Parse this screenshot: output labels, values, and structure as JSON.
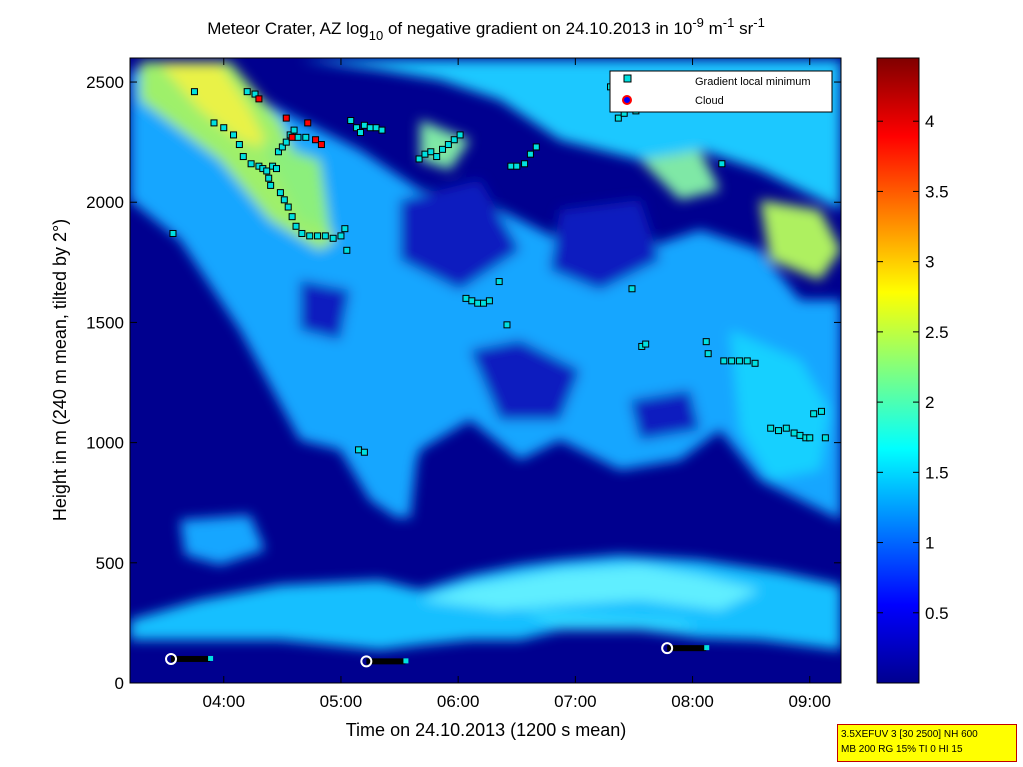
{
  "chart_data": {
    "type": "heatmap",
    "title": {
      "part1": "Meteor Crater, AZ log",
      "sub": "10",
      "part2": " of negative gradient on 24.10.2013 in 10",
      "sup1": "-9",
      "part3": " m",
      "sup2": "-1",
      "part4": " sr",
      "sup3": "-1"
    },
    "xlabel": "Time on 24.10.2013 (1200 s mean)",
    "ylabel": "Height in m (240 m mean, tilted by 2°)",
    "xlim": [
      "03:12",
      "09:16"
    ],
    "ylim": [
      0,
      2600
    ],
    "xticks": [
      "04:00",
      "05:00",
      "06:00",
      "07:00",
      "08:00",
      "09:00"
    ],
    "yticks": [
      0,
      500,
      1000,
      1500,
      2000,
      2500
    ],
    "colorbar": {
      "range": [
        0,
        4.45
      ],
      "ticks": [
        "0.5",
        "1",
        "1.5",
        "2",
        "2.5",
        "3",
        "3.5",
        "4"
      ],
      "colormap": "jet"
    },
    "legend": {
      "position": "top-right",
      "entries": [
        {
          "label": "Gradient local minimum",
          "marker": "square",
          "color": "#00e0e0"
        },
        {
          "label": "Cloud",
          "marker": "circle",
          "color": "#ff0000"
        }
      ]
    },
    "gradient_local_minimum": [
      {
        "time": "03:34",
        "height": 1870
      },
      {
        "time": "03:45",
        "height": 2460
      },
      {
        "time": "03:55",
        "height": 2330
      },
      {
        "time": "04:00",
        "height": 2310
      },
      {
        "time": "04:05",
        "height": 2280
      },
      {
        "time": "04:08",
        "height": 2240
      },
      {
        "time": "04:10",
        "height": 2190
      },
      {
        "time": "04:12",
        "height": 2460
      },
      {
        "time": "04:14",
        "height": 2160
      },
      {
        "time": "04:16",
        "height": 2450
      },
      {
        "time": "04:18",
        "height": 2150
      },
      {
        "time": "04:20",
        "height": 2140
      },
      {
        "time": "04:22",
        "height": 2130
      },
      {
        "time": "04:23",
        "height": 2100
      },
      {
        "time": "04:24",
        "height": 2070
      },
      {
        "time": "04:25",
        "height": 2150
      },
      {
        "time": "04:27",
        "height": 2140
      },
      {
        "time": "04:28",
        "height": 2210
      },
      {
        "time": "04:29",
        "height": 2040
      },
      {
        "time": "04:30",
        "height": 2230
      },
      {
        "time": "04:31",
        "height": 2010
      },
      {
        "time": "04:32",
        "height": 2250
      },
      {
        "time": "04:33",
        "height": 1980
      },
      {
        "time": "04:34",
        "height": 2280
      },
      {
        "time": "04:35",
        "height": 1940
      },
      {
        "time": "04:36",
        "height": 2300
      },
      {
        "time": "04:37",
        "height": 1900
      },
      {
        "time": "04:38",
        "height": 2270
      },
      {
        "time": "04:40",
        "height": 1870
      },
      {
        "time": "04:42",
        "height": 2270
      },
      {
        "time": "04:44",
        "height": 1860
      },
      {
        "time": "04:48",
        "height": 1860
      },
      {
        "time": "04:52",
        "height": 1860
      },
      {
        "time": "04:56",
        "height": 1850
      },
      {
        "time": "05:00",
        "height": 1860
      },
      {
        "time": "05:02",
        "height": 1890
      },
      {
        "time": "05:03",
        "height": 1800
      },
      {
        "time": "05:05",
        "height": 2340
      },
      {
        "time": "05:08",
        "height": 2310
      },
      {
        "time": "05:10",
        "height": 2290
      },
      {
        "time": "05:12",
        "height": 2320
      },
      {
        "time": "05:15",
        "height": 2310
      },
      {
        "time": "05:18",
        "height": 2310
      },
      {
        "time": "05:21",
        "height": 2300
      },
      {
        "time": "05:09",
        "height": 970
      },
      {
        "time": "05:12",
        "height": 960
      },
      {
        "time": "05:40",
        "height": 2180
      },
      {
        "time": "05:43",
        "height": 2200
      },
      {
        "time": "05:46",
        "height": 2210
      },
      {
        "time": "05:49",
        "height": 2190
      },
      {
        "time": "05:52",
        "height": 2220
      },
      {
        "time": "05:55",
        "height": 2240
      },
      {
        "time": "05:58",
        "height": 2260
      },
      {
        "time": "06:01",
        "height": 2280
      },
      {
        "time": "06:04",
        "height": 1600
      },
      {
        "time": "06:07",
        "height": 1590
      },
      {
        "time": "06:10",
        "height": 1580
      },
      {
        "time": "06:13",
        "height": 1580
      },
      {
        "time": "06:16",
        "height": 1590
      },
      {
        "time": "06:21",
        "height": 1670
      },
      {
        "time": "06:25",
        "height": 1490
      },
      {
        "time": "06:27",
        "height": 2150
      },
      {
        "time": "06:30",
        "height": 2150
      },
      {
        "time": "06:34",
        "height": 2160
      },
      {
        "time": "06:37",
        "height": 2200
      },
      {
        "time": "06:40",
        "height": 2230
      },
      {
        "time": "07:18",
        "height": 2480
      },
      {
        "time": "07:22",
        "height": 2350
      },
      {
        "time": "07:25",
        "height": 2370
      },
      {
        "time": "07:29",
        "height": 1640
      },
      {
        "time": "07:31",
        "height": 2380
      },
      {
        "time": "07:34",
        "height": 1400
      },
      {
        "time": "07:36",
        "height": 1410
      },
      {
        "time": "08:07",
        "height": 1420
      },
      {
        "time": "08:08",
        "height": 1370
      },
      {
        "time": "08:15",
        "height": 2160
      },
      {
        "time": "08:16",
        "height": 1340
      },
      {
        "time": "08:20",
        "height": 1340
      },
      {
        "time": "08:24",
        "height": 1340
      },
      {
        "time": "08:28",
        "height": 1340
      },
      {
        "time": "08:32",
        "height": 1330
      },
      {
        "time": "08:40",
        "height": 1060
      },
      {
        "time": "08:44",
        "height": 1050
      },
      {
        "time": "08:48",
        "height": 1060
      },
      {
        "time": "08:52",
        "height": 1040
      },
      {
        "time": "08:55",
        "height": 1030
      },
      {
        "time": "08:58",
        "height": 1020
      },
      {
        "time": "09:00",
        "height": 1020
      },
      {
        "time": "09:02",
        "height": 1120
      },
      {
        "time": "09:06",
        "height": 1130
      },
      {
        "time": "09:08",
        "height": 1020
      }
    ],
    "cloud": [
      {
        "time": "04:18",
        "height": 2430
      },
      {
        "time": "04:32",
        "height": 2350
      },
      {
        "time": "04:35",
        "height": 2270
      },
      {
        "time": "04:43",
        "height": 2330
      },
      {
        "time": "04:47",
        "height": 2260
      },
      {
        "time": "04:50",
        "height": 2240
      }
    ],
    "surface_markers": [
      {
        "time": "03:33",
        "height": 100,
        "end": "03:53"
      },
      {
        "time": "05:13",
        "height": 90,
        "end": "05:33"
      },
      {
        "time": "07:47",
        "height": 145,
        "end": "08:07"
      }
    ]
  },
  "info_box": {
    "line1": "3.5XEFUV 3 [30 2500] NH 600",
    "line2": "MB 200 RG 15% TI 0 HI 15"
  }
}
